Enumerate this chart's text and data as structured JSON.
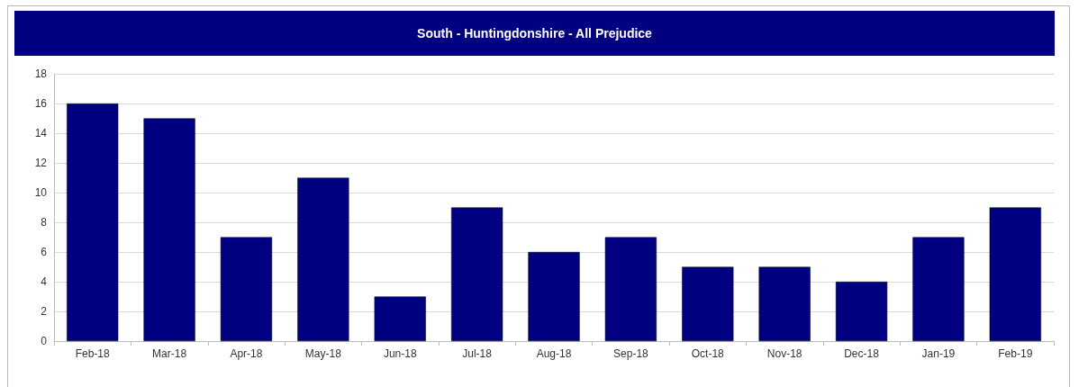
{
  "chart_data": {
    "type": "bar",
    "title": "South - Huntingdonshire - All Prejudice",
    "categories": [
      "Feb-18",
      "Mar-18",
      "Apr-18",
      "May-18",
      "Jun-18",
      "Jul-18",
      "Aug-18",
      "Sep-18",
      "Oct-18",
      "Nov-18",
      "Dec-18",
      "Jan-19",
      "Feb-19"
    ],
    "values": [
      16,
      15,
      7,
      11,
      3,
      9,
      6,
      7,
      5,
      5,
      4,
      7,
      9
    ],
    "color": "#000080",
    "ylim": [
      0,
      18
    ],
    "yticks": [
      0,
      2,
      4,
      6,
      8,
      10,
      12,
      14,
      16,
      18
    ],
    "grid": "y"
  }
}
